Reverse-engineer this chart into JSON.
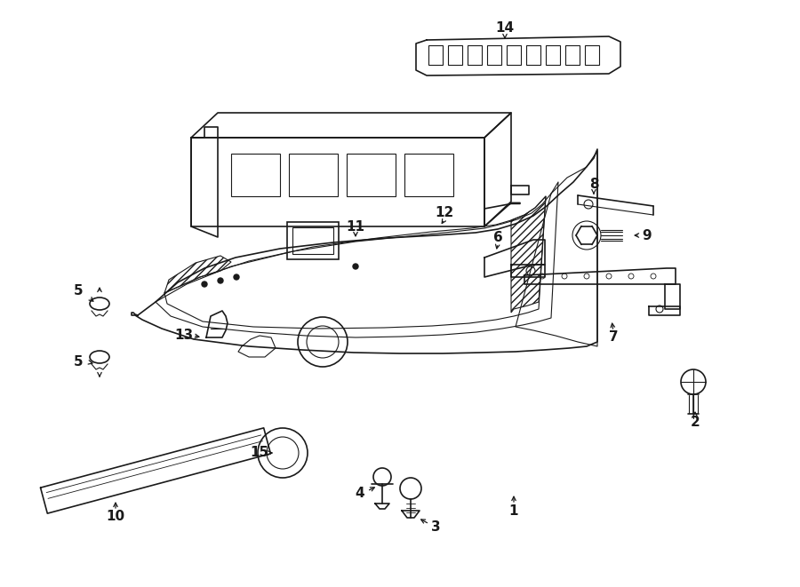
{
  "bg_color": "#ffffff",
  "lc": "#1a1a1a",
  "figsize": [
    9.0,
    6.61
  ],
  "dpi": 100
}
